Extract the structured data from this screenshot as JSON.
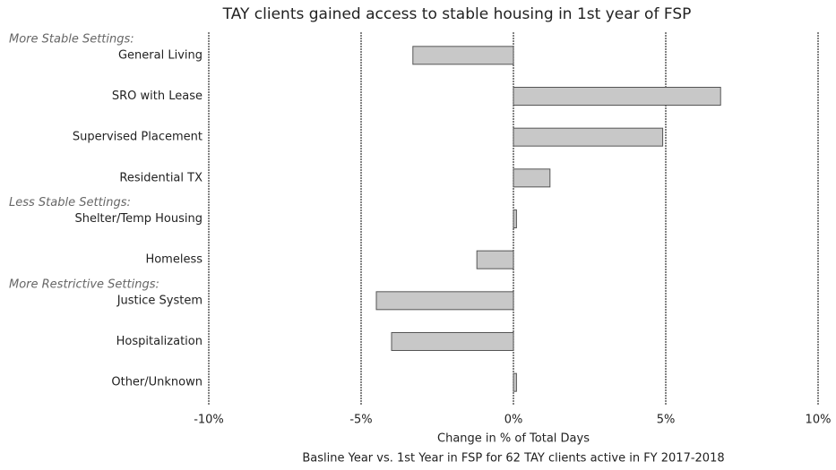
{
  "chart_data": {
    "type": "bar",
    "orientation": "horizontal",
    "title": "TAY clients gained access to stable housing in 1st year of FSP",
    "x_label": "Change in % of Total Days",
    "subtitle": "Basline Year vs. 1st Year in FSP for 62 TAY clients active in FY 2017-2018",
    "annotations": [
      "More Stable Settings:",
      "Less Stable Settings:",
      "More Restrictive Settings:"
    ],
    "categories": [
      "General Living",
      "SRO with Lease",
      "Supervised Placement",
      "Residential TX",
      "Shelter/Temp Housing",
      "Homeless",
      "Justice System",
      "Hospitalization",
      "Other/Unknown"
    ],
    "values": [
      -3.3,
      6.8,
      4.9,
      1.2,
      0.1,
      -1.2,
      -4.5,
      -4.0,
      0.1
    ],
    "color": "#c8c8c8",
    "xlim": [
      -10,
      10
    ],
    "xticks": [
      {
        "value": -10,
        "label": "-10%"
      },
      {
        "value": -5,
        "label": "-5%"
      },
      {
        "value": 0,
        "label": "0%"
      },
      {
        "value": 5,
        "label": "5%"
      },
      {
        "value": 10,
        "label": "10%"
      }
    ],
    "grid": true
  }
}
